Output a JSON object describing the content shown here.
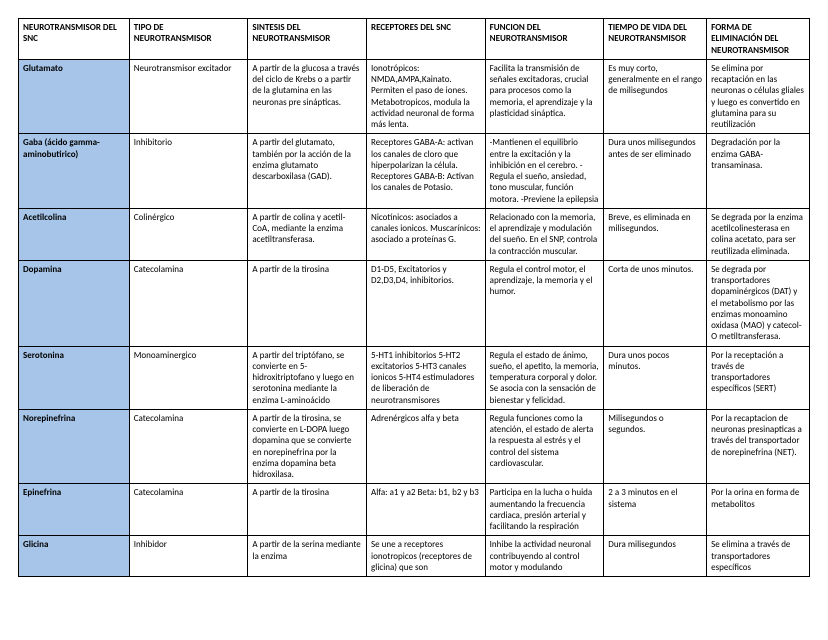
{
  "table": {
    "type": "table",
    "rowname_bg": "#a6c5e8",
    "border_color": "#000000",
    "font_family": "Calibri",
    "header_fontsize": 9,
    "cell_fontsize": 9,
    "columns": [
      "NEUROTRANSMISOR DEL SNC",
      "TIPO DE NEUROTRANSMISOR",
      "SINTESIS DEL NEUROTRANSMISOR",
      "RECEPTORES DEL SNC",
      "FUNCION DEL NEUROTRANSMISOR",
      "TIEMPO DE VIDA DEL NEUROTRANSMISOR",
      "FORMA DE ELIMINACIÓN DEL NEUROTRANSMISOR"
    ],
    "rows": [
      {
        "name": "Glutamato",
        "cells": [
          "Neurotransmisor excitador",
          "A partir de la glucosa a través del ciclo de Krebs o a partir de la glutamina en las neuronas pre sinápticas.",
          "Ionotrópicos: NMDA,AMPA,Kainato. Permiten el paso de iones. Metabotropicos, modula la actividad neuronal de forma más lenta.",
          "Facilita la transmisión de señales excitadoras, crucial para procesos como la memoria, el aprendizaje y la plasticidad sináptica.",
          "Es muy corto, generalmente en el rango de milisegundos",
          "Se elimina por recaptación en las neuronas o células gliales y luego es convertido en glutamina para su reutilización"
        ]
      },
      {
        "name": "Gaba (ácido gamma-aminobutirico)",
        "cells": [
          "Inhibitorio",
          "A partir del glutamato, también por la acción de la enzima glutamato descarboxilasa (GAD).",
          "Receptores GABA-A: activan los canales de cloro que hiperpolarizan la célula. Receptores GABA-B: Activan los canales de Potasio.",
          "-Mantienen el equilibrio entre la excitación y la inhibición en el cerebro. -Regula el sueño, ansiedad, tono muscular, función motora. -Previene la epilepsia",
          "Dura unos milisegundos antes de ser eliminado",
          "Degradación por la enzima GABA- transaminasa."
        ]
      },
      {
        "name": "Acetilcolina",
        "cells": [
          "Colinérgico",
          "A partir de colina y acetil-CoA, mediante la enzima acetiltransferasa.",
          "Nicotínicos:  asociados a canales ionicos. Muscarínicos: asociado a proteínas G.",
          "Relacionado con la memoria, el aprendizaje y modulación del sueño. En el SNP, controla la contracción muscular.",
          "Breve, es eliminada en milisegundos.",
          "Se degrada por la enzima acetilcolinesterasa en colina acetato, para ser reutilizada eliminada."
        ]
      },
      {
        "name": "Dopamina",
        "cells": [
          "Catecolamina",
          "A partir de la tirosina",
          "D1-D5, Excitatorios y D2,D3,D4, inhibitorios.",
          "Regula el control motor, el aprendizaje, la memoria y el humor.",
          "Corta de unos minutos.",
          "Se degrada por transportadores dopaminérgicos (DAT) y el metabolismo por las enzimas monoamino oxidasa (MAO) y catecol-O metiltransferasa."
        ]
      },
      {
        "name": "Serotonina",
        "cells": [
          "Monoaminergico",
          "A partir del triptófano, se convierte en 5-hidroxitriptofano y luego en serotonina mediante la enzima L-aminoácido",
          "5-HT1 inhibitorios 5-HT2 excitatorios 5-HT3 canales ionicos 5-HT4 estimuladores de liberación de neurotransmisores",
          "Regula el estado de ánimo, sueño, el apetito, la memoria, temperatura corporal y dolor. Se asocia con la sensación de bienestar y felicidad.",
          "Dura unos pocos minutos.",
          "Por la receptación a través de transportadores específicos (SERT)"
        ]
      },
      {
        "name": "Norepinefrina",
        "cells": [
          "Catecolamina",
          "A partir de la tirosina, se convierte en L-DOPA luego dopamina que se convierte en norepinefrina por la enzima dopamina beta hidroxilasa.",
          "Adrenérgicos alfa y beta",
          "Regula funciones como la atención, el estado de alerta la respuesta al estrés y el control del sistema cardiovascular.",
          "Milisegundos o segundos.",
          "Por la recaptacion de neuronas presinapticas a través del transportador de norepinefrina (NET)."
        ]
      },
      {
        "name": "Epinefrina",
        "cells": [
          "Catecolamina",
          "A partir de la tirosina",
          "Alfa: a1 y a2 Beta: b1, b2 y b3",
          "Participa en la lucha o huida aumentando la frecuencia cardiaca, presión arterial y facilitando la respiración",
          "2 a 3 minutos en el sistema",
          "Por la orina en forma de metabolitos"
        ]
      },
      {
        "name": "Glicina",
        "cells": [
          "Inhibidor",
          "A partir de la serina mediante la enzima",
          "Se une a receptores ionotropicos (receptores de glicina) que son",
          "Inhibe la actividad neuronal contribuyendo al control motor y modulando",
          "Dura milisegundos",
          "Se elimina a través de transportadores específicos"
        ]
      }
    ]
  }
}
